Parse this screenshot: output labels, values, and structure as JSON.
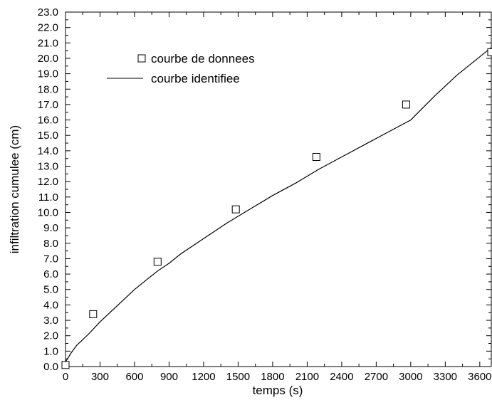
{
  "chart_data": {
    "type": "scatter",
    "title": "",
    "xlabel": "temps (s)",
    "ylabel": "infiltration cumulee (cm)",
    "xlim": [
      0,
      3700
    ],
    "ylim": [
      0,
      23
    ],
    "xticks": [
      0,
      300,
      600,
      900,
      1200,
      1500,
      1800,
      2100,
      2400,
      2700,
      3000,
      3300,
      3600
    ],
    "xtick_labels": [
      "0",
      "300",
      "600",
      "900",
      "1200",
      "1500",
      "1800",
      "2100",
      "2400",
      "2700",
      "3000",
      "3300",
      "3600"
    ],
    "yticks": [
      0,
      1,
      2,
      3,
      4,
      5,
      6,
      7,
      8,
      9,
      10,
      11,
      12,
      13,
      14,
      15,
      16,
      17,
      18,
      19,
      20,
      21,
      22,
      23
    ],
    "ytick_labels": [
      "0.0",
      "1.0",
      "2.0",
      "3.0",
      "4.0",
      "5.0",
      "6.0",
      "7.0",
      "8.0",
      "9.0",
      "10.0",
      "11.0",
      "12.0",
      "13.0",
      "14.0",
      "15.0",
      "16.0",
      "17.0",
      "18.0",
      "19.0",
      "20.0",
      "21.0",
      "22.0",
      "23.0"
    ],
    "grid": false,
    "legend_position": "top-left",
    "series": [
      {
        "name": "courbe de donnees",
        "kind": "markers",
        "marker": "open-square",
        "x": [
          0,
          240,
          800,
          1480,
          2180,
          2960,
          3700
        ],
        "y": [
          0.1,
          3.4,
          6.8,
          10.2,
          13.6,
          17.0,
          20.4
        ]
      },
      {
        "name": "courbe identifiee",
        "kind": "line",
        "x": [
          0,
          50,
          100,
          200,
          300,
          400,
          500,
          600,
          700,
          800,
          900,
          1000,
          1200,
          1400,
          1600,
          1800,
          2000,
          2200,
          2400,
          2600,
          2800,
          3000,
          3200,
          3400,
          3600,
          3700
        ],
        "y": [
          0.3,
          0.9,
          1.4,
          2.1,
          2.9,
          3.6,
          4.3,
          5.0,
          5.6,
          6.2,
          6.7,
          7.3,
          8.3,
          9.3,
          10.2,
          11.1,
          11.9,
          12.8,
          13.6,
          14.4,
          15.2,
          16.0,
          17.5,
          18.9,
          20.1,
          20.7
        ]
      }
    ]
  }
}
